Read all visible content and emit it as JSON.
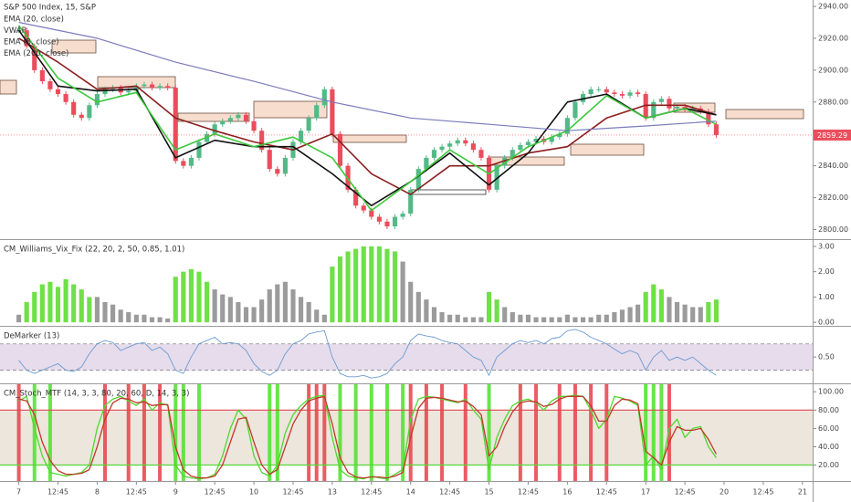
{
  "x_axis": {
    "xlim": [
      -2.4,
      101.3
    ],
    "xticks": [
      {
        "value": 0,
        "label": "7"
      },
      {
        "value": 5,
        "label": "12:45"
      },
      {
        "value": 10,
        "label": "8"
      },
      {
        "value": 15,
        "label": "12:45"
      },
      {
        "value": 20,
        "label": "9"
      },
      {
        "value": 25,
        "label": "12:45"
      },
      {
        "value": 30,
        "label": "10"
      },
      {
        "value": 35,
        "label": "12:45"
      },
      {
        "value": 40,
        "label": "13"
      },
      {
        "value": 45,
        "label": "12:45"
      },
      {
        "value": 50,
        "label": "14"
      },
      {
        "value": 55,
        "label": "12:45"
      },
      {
        "value": 60,
        "label": "15"
      },
      {
        "value": 65,
        "label": "12:45"
      },
      {
        "value": 70,
        "label": "16"
      },
      {
        "value": 75,
        "label": "12:45"
      },
      {
        "value": 80,
        "label": "17"
      },
      {
        "value": 85,
        "label": "12:45"
      },
      {
        "value": 90,
        "label": "20"
      },
      {
        "value": 95,
        "label": "12:45"
      },
      {
        "value": 100,
        "label": "21"
      }
    ]
  },
  "chart_data": [
    {
      "type": "candlestick",
      "title": "S&P 500 Index, 15, S&P",
      "up_color": "#53b987",
      "down_color": "#eb4d5c",
      "ylim": [
        2794,
        2944
      ],
      "yticks": [
        {
          "value": 2800,
          "label": "2800.00"
        },
        {
          "value": 2820,
          "label": "2820.00"
        },
        {
          "value": 2840,
          "label": "2840.00"
        },
        {
          "value": 2860,
          "label": "2860.00"
        },
        {
          "value": 2880,
          "label": "2880.00"
        },
        {
          "value": 2900,
          "label": "2900.00"
        },
        {
          "value": 2920,
          "label": "2920.00"
        },
        {
          "value": 2940,
          "label": "2940.00"
        }
      ],
      "last_price": 2859.29,
      "last_price_color": "#eb4d5c",
      "values": [
        2925,
        2915,
        2900,
        2893,
        2888,
        2885,
        2880,
        2872,
        2870,
        2878,
        2885,
        2888,
        2889,
        2886,
        2887,
        2890,
        2891,
        2889,
        2890,
        2889,
        2843,
        2840,
        2845,
        2855,
        2860,
        2866,
        2868,
        2870,
        2872,
        2868,
        2862,
        2850,
        2838,
        2835,
        2845,
        2855,
        2862,
        2870,
        2878,
        2888,
        2860,
        2840,
        2825,
        2815,
        2812,
        2808,
        2805,
        2802,
        2808,
        2810,
        2825,
        2838,
        2845,
        2850,
        2852,
        2854,
        2856,
        2854,
        2850,
        2845,
        2825,
        2840,
        2845,
        2850,
        2853,
        2855,
        2857,
        2855,
        2858,
        2860,
        2870,
        2880,
        2885,
        2888,
        2888,
        2886,
        2885,
        2884,
        2886,
        2885,
        2870,
        2880,
        2882,
        2876,
        2877,
        2875,
        2876,
        2874,
        2866,
        2859.29
      ],
      "series": [
        {
          "name": "EMA (20, close)",
          "color": "#8b1e1e",
          "x": [
            0,
            5,
            10,
            15,
            20,
            25,
            30,
            35,
            40,
            45,
            50,
            55,
            60,
            65,
            70,
            75,
            80,
            85,
            89
          ],
          "values": [
            2920,
            2905,
            2888,
            2890,
            2870,
            2862,
            2855,
            2850,
            2860,
            2835,
            2822,
            2840,
            2840,
            2848,
            2852,
            2870,
            2878,
            2878,
            2872
          ]
        },
        {
          "name": "VWAP",
          "color": "#111111",
          "x": [
            0,
            5,
            10,
            15,
            20,
            25,
            30,
            35,
            40,
            45,
            50,
            55,
            60,
            65,
            70,
            75,
            80,
            85,
            89
          ],
          "values": [
            2925,
            2890,
            2887,
            2888,
            2845,
            2856,
            2852,
            2852,
            2835,
            2815,
            2830,
            2848,
            2828,
            2848,
            2880,
            2885,
            2870,
            2876,
            2872
          ]
        },
        {
          "name": "EMA (8, close)",
          "color": "#3cc83c",
          "x": [
            0,
            5,
            10,
            15,
            20,
            25,
            30,
            35,
            40,
            45,
            50,
            55,
            60,
            65,
            70,
            75,
            80,
            85,
            89
          ],
          "values": [
            2928,
            2895,
            2880,
            2886,
            2850,
            2860,
            2852,
            2858,
            2845,
            2812,
            2830,
            2850,
            2835,
            2852,
            2862,
            2884,
            2870,
            2876,
            2866
          ]
        },
        {
          "name": "EMA (200, close)",
          "color": "#7b7bbd",
          "x": [
            0,
            10,
            20,
            30,
            40,
            50,
            60,
            70,
            80,
            89
          ],
          "values": [
            2930,
            2920,
            2905,
            2893,
            2880,
            2870,
            2866,
            2862,
            2865,
            2868
          ]
        }
      ]
    },
    {
      "type": "bar",
      "title": "CM_Williams_Vix_Fix (22, 20, 2, 50, 0.85, 1.01)",
      "ylim": [
        -0.14,
        3.25
      ],
      "yticks": [
        {
          "value": 0,
          "label": "0.00"
        },
        {
          "value": 1,
          "label": "1.00"
        },
        {
          "value": 2,
          "label": "2.00"
        },
        {
          "value": 3,
          "label": "3.00"
        }
      ],
      "values": [
        0.3,
        0.8,
        1.2,
        1.5,
        1.6,
        1.4,
        1.7,
        1.5,
        1.3,
        1.0,
        1.0,
        0.8,
        0.7,
        0.5,
        0.4,
        0.3,
        0.3,
        0.2,
        0.2,
        0.15,
        1.8,
        2.0,
        2.1,
        2.0,
        1.6,
        1.3,
        1.1,
        1.0,
        0.8,
        0.6,
        0.6,
        0.9,
        1.3,
        1.5,
        1.6,
        1.3,
        1.0,
        0.8,
        0.5,
        0.3,
        2.2,
        2.6,
        2.8,
        2.9,
        3.0,
        3.0,
        3.0,
        2.9,
        2.8,
        2.4,
        1.6,
        1.2,
        0.9,
        0.6,
        0.4,
        0.3,
        0.3,
        0.2,
        0.2,
        0.2,
        1.2,
        0.9,
        0.6,
        0.4,
        0.3,
        0.3,
        0.2,
        0.2,
        0.2,
        0.2,
        0.3,
        0.2,
        0.2,
        0.2,
        0.3,
        0.3,
        0.4,
        0.5,
        0.6,
        0.7,
        1.2,
        1.5,
        1.3,
        1.0,
        0.8,
        0.7,
        0.6,
        0.6,
        0.8,
        0.9
      ],
      "colors": [
        "#9b9b9b",
        "#6fe047",
        "#6fe047",
        "#6fe047",
        "#6fe047",
        "#6fe047",
        "#6fe047",
        "#6fe047",
        "#6fe047",
        "#6fe047",
        "#9b9b9b",
        "#9b9b9b",
        "#9b9b9b",
        "#9b9b9b",
        "#9b9b9b",
        "#9b9b9b",
        "#9b9b9b",
        "#9b9b9b",
        "#9b9b9b",
        "#9b9b9b",
        "#6fe047",
        "#6fe047",
        "#6fe047",
        "#6fe047",
        "#6fe047",
        "#9b9b9b",
        "#9b9b9b",
        "#9b9b9b",
        "#9b9b9b",
        "#9b9b9b",
        "#9b9b9b",
        "#9b9b9b",
        "#9b9b9b",
        "#9b9b9b",
        "#9b9b9b",
        "#9b9b9b",
        "#9b9b9b",
        "#9b9b9b",
        "#9b9b9b",
        "#9b9b9b",
        "#6fe047",
        "#6fe047",
        "#6fe047",
        "#6fe047",
        "#6fe047",
        "#6fe047",
        "#6fe047",
        "#6fe047",
        "#6fe047",
        "#9b9b9b",
        "#9b9b9b",
        "#9b9b9b",
        "#9b9b9b",
        "#9b9b9b",
        "#9b9b9b",
        "#9b9b9b",
        "#9b9b9b",
        "#9b9b9b",
        "#9b9b9b",
        "#9b9b9b",
        "#6fe047",
        "#6fe047",
        "#9b9b9b",
        "#9b9b9b",
        "#9b9b9b",
        "#9b9b9b",
        "#9b9b9b",
        "#9b9b9b",
        "#9b9b9b",
        "#9b9b9b",
        "#9b9b9b",
        "#9b9b9b",
        "#9b9b9b",
        "#9b9b9b",
        "#9b9b9b",
        "#9b9b9b",
        "#9b9b9b",
        "#9b9b9b",
        "#9b9b9b",
        "#9b9b9b",
        "#6fe047",
        "#6fe047",
        "#6fe047",
        "#9b9b9b",
        "#9b9b9b",
        "#9b9b9b",
        "#9b9b9b",
        "#9b9b9b",
        "#6fe047",
        "#6fe047"
      ]
    },
    {
      "type": "line",
      "title": "DeMarker (13)",
      "color": "#6c9bd2",
      "ylim": [
        0.1,
        0.96
      ],
      "yticks": [
        {
          "value": 0.5,
          "label": "0.50"
        }
      ],
      "bands": [
        0.3,
        0.7
      ],
      "band_fill": "#e6dcec",
      "values": [
        0.45,
        0.3,
        0.25,
        0.3,
        0.35,
        0.4,
        0.3,
        0.28,
        0.35,
        0.55,
        0.7,
        0.75,
        0.72,
        0.6,
        0.65,
        0.7,
        0.72,
        0.6,
        0.65,
        0.55,
        0.3,
        0.25,
        0.5,
        0.7,
        0.75,
        0.8,
        0.7,
        0.72,
        0.7,
        0.6,
        0.4,
        0.28,
        0.22,
        0.3,
        0.55,
        0.7,
        0.75,
        0.85,
        0.88,
        0.9,
        0.5,
        0.25,
        0.2,
        0.2,
        0.22,
        0.18,
        0.2,
        0.25,
        0.4,
        0.5,
        0.75,
        0.85,
        0.82,
        0.8,
        0.75,
        0.72,
        0.7,
        0.6,
        0.5,
        0.45,
        0.22,
        0.5,
        0.6,
        0.7,
        0.75,
        0.72,
        0.75,
        0.7,
        0.78,
        0.8,
        0.9,
        0.92,
        0.88,
        0.8,
        0.75,
        0.7,
        0.62,
        0.55,
        0.6,
        0.55,
        0.3,
        0.5,
        0.6,
        0.45,
        0.5,
        0.45,
        0.5,
        0.4,
        0.3,
        0.22
      ]
    },
    {
      "type": "stoch",
      "title": "CM_Stoch_MTF (14, 3, 3, 80, 20, 60, D, 14, 3, 3)",
      "ylim": [
        2.6,
        108.2
      ],
      "yticks": [
        {
          "value": 20,
          "label": "20.00"
        },
        {
          "value": 40,
          "label": "40.00"
        },
        {
          "value": 60,
          "label": "60.00"
        },
        {
          "value": 80,
          "label": "80.00"
        },
        {
          "value": 100,
          "label": "100.00"
        }
      ],
      "levels": [
        {
          "value": 80,
          "color": "#e0474c"
        },
        {
          "value": 20,
          "color": "#55d83a"
        }
      ],
      "band_fill": "#ece6dc",
      "buy_color": "#4fe02a",
      "sell_color": "#e8404a",
      "buy_signals": [
        2,
        4,
        20,
        21,
        23,
        32,
        33,
        41,
        43,
        45,
        47,
        49,
        60,
        80,
        81,
        82
      ],
      "sell_signals": [
        0,
        11,
        14,
        16,
        18,
        37,
        38,
        39,
        50,
        52,
        54,
        57,
        64,
        66,
        69,
        71,
        73,
        75,
        83
      ],
      "series": [
        {
          "color": "#4fd82f",
          "values": [
            90,
            95,
            60,
            30,
            12,
            10,
            8,
            10,
            12,
            20,
            60,
            85,
            92,
            95,
            90,
            85,
            92,
            80,
            88,
            85,
            20,
            8,
            6,
            5,
            6,
            10,
            30,
            60,
            80,
            70,
            30,
            12,
            8,
            20,
            55,
            75,
            85,
            92,
            95,
            96,
            50,
            15,
            8,
            6,
            5,
            8,
            6,
            5,
            10,
            15,
            70,
            92,
            95,
            94,
            92,
            90,
            88,
            92,
            80,
            70,
            15,
            50,
            70,
            85,
            90,
            92,
            88,
            80,
            90,
            95,
            95,
            96,
            95,
            80,
            60,
            70,
            95,
            93,
            90,
            85,
            20,
            30,
            15,
            60,
            70,
            50,
            60,
            62,
            40,
            28
          ]
        },
        {
          "color": "#c0392b",
          "values": [
            92,
            90,
            75,
            45,
            25,
            14,
            10,
            10,
            11,
            15,
            40,
            70,
            88,
            93,
            92,
            88,
            89,
            85,
            86,
            86,
            40,
            15,
            8,
            6,
            6,
            8,
            20,
            45,
            70,
            72,
            45,
            20,
            10,
            15,
            40,
            65,
            80,
            90,
            93,
            95,
            65,
            28,
            12,
            7,
            6,
            7,
            7,
            6,
            8,
            12,
            50,
            82,
            93,
            94,
            93,
            91,
            89,
            90,
            84,
            75,
            30,
            40,
            62,
            78,
            88,
            90,
            89,
            84,
            86,
            92,
            95,
            95,
            95,
            85,
            68,
            68,
            85,
            92,
            91,
            87,
            35,
            28,
            20,
            45,
            62,
            58,
            58,
            60,
            48,
            32
          ]
        }
      ]
    }
  ]
}
